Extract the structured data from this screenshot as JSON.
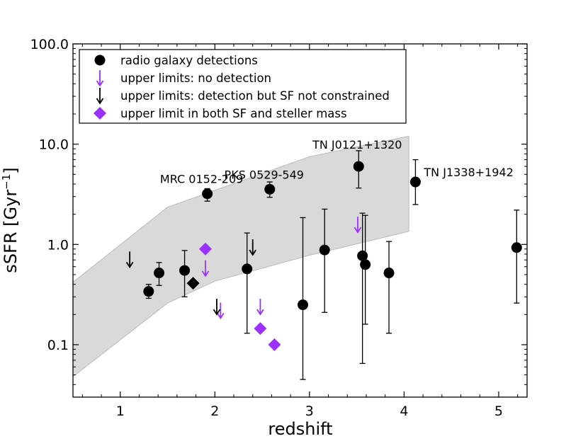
{
  "chart_data": {
    "type": "scatter",
    "title": "",
    "xlabel": "redshift",
    "ylabel_main": "sSFR [Gyr",
    "ylabel_sup": "−1",
    "ylabel_close": "]",
    "xlim": [
      0.5,
      5.3
    ],
    "ylim": [
      0.03,
      100
    ],
    "yscale": "log",
    "xticks": [
      1,
      2,
      3,
      4,
      5
    ],
    "xtick_labels": [
      "1",
      "2",
      "3",
      "4",
      "5"
    ],
    "yticks": [
      0.1,
      1,
      10,
      100
    ],
    "ytick_labels": [
      "0.1",
      "1.0",
      "10.0",
      "100.0"
    ],
    "colors": {
      "purple": "#9b30ff",
      "black": "#000000",
      "band": "#d9d9d9",
      "band_edge": "#bbbbbb"
    },
    "band": {
      "upper": [
        [
          0.5,
          0.42
        ],
        [
          1.5,
          2.35
        ],
        [
          3.0,
          7.5
        ],
        [
          4.05,
          12.0
        ]
      ],
      "lower": [
        [
          0.5,
          0.048
        ],
        [
          1.5,
          0.26
        ],
        [
          2.0,
          0.43
        ],
        [
          3.0,
          0.78
        ],
        [
          4.05,
          1.35
        ]
      ]
    },
    "detections": [
      {
        "x": 1.3,
        "y": 0.34,
        "lo": 0.29,
        "hi": 0.4
      },
      {
        "x": 1.41,
        "y": 0.52,
        "lo": 0.39,
        "hi": 0.66
      },
      {
        "x": 1.68,
        "y": 0.55,
        "lo": 0.3,
        "hi": 0.87
      },
      {
        "x": 1.92,
        "y": 3.2,
        "lo": 2.7,
        "hi": 3.6
      },
      {
        "x": 2.34,
        "y": 0.57,
        "lo": 0.13,
        "hi": 1.3
      },
      {
        "x": 2.58,
        "y": 3.55,
        "lo": 2.95,
        "hi": 4.2
      },
      {
        "x": 2.93,
        "y": 0.25,
        "lo": 0.045,
        "hi": 1.85
      },
      {
        "x": 3.16,
        "y": 0.88,
        "lo": 0.21,
        "hi": 2.25
      },
      {
        "x": 3.52,
        "y": 6.0,
        "lo": 3.65,
        "hi": 8.6
      },
      {
        "x": 3.56,
        "y": 0.77,
        "lo": 0.065,
        "hi": 2.05
      },
      {
        "x": 3.59,
        "y": 0.63,
        "lo": 0.16,
        "hi": 1.95
      },
      {
        "x": 3.84,
        "y": 0.52,
        "lo": 0.13,
        "hi": 1.07
      },
      {
        "x": 4.12,
        "y": 4.2,
        "lo": 2.5,
        "hi": 7.0
      },
      {
        "x": 5.19,
        "y": 0.93,
        "lo": 0.26,
        "hi": 2.2
      }
    ],
    "upper_limits_no_detection": [
      {
        "x": 1.9,
        "y": 0.58
      },
      {
        "x": 2.06,
        "y": 0.22
      },
      {
        "x": 2.48,
        "y": 0.24
      },
      {
        "x": 3.51,
        "y": 1.58
      }
    ],
    "upper_limits_sf_not_constrained": [
      {
        "x": 1.1,
        "y": 0.71
      },
      {
        "x": 2.02,
        "y": 0.24
      },
      {
        "x": 2.4,
        "y": 0.94
      }
    ],
    "upper_limits_both": [
      {
        "x": 1.77,
        "y": 0.41,
        "color": "#000000"
      },
      {
        "x": 1.9,
        "y": 0.9,
        "color": "#9b30ff"
      },
      {
        "x": 2.48,
        "y": 0.145,
        "color": "#9b30ff"
      },
      {
        "x": 2.63,
        "y": 0.1,
        "color": "#9b30ff"
      }
    ],
    "annotations": [
      {
        "text": "MRC 0152-209",
        "x": 1.92,
        "y": 3.2
      },
      {
        "text": "PKS 0529-549",
        "x": 2.58,
        "y": 3.55
      },
      {
        "text": "TN J0121+1320",
        "x": 3.52,
        "y": 6.0
      },
      {
        "text": "TN J1338+1942",
        "x": 4.12,
        "y": 4.2
      }
    ],
    "legend": {
      "location": "upper-left",
      "entries": [
        {
          "label": "radio galaxy detections",
          "marker": "circle",
          "color": "#000000"
        },
        {
          "label": "upper limits: no detection",
          "marker": "down-arrow",
          "color": "#9b30ff"
        },
        {
          "label": "upper limits: detection but SF not constrained",
          "marker": "down-arrow",
          "color": "#000000"
        },
        {
          "label": "upper limit in both SF and steller mass",
          "marker": "diamond",
          "color": "#9b30ff"
        }
      ]
    }
  }
}
